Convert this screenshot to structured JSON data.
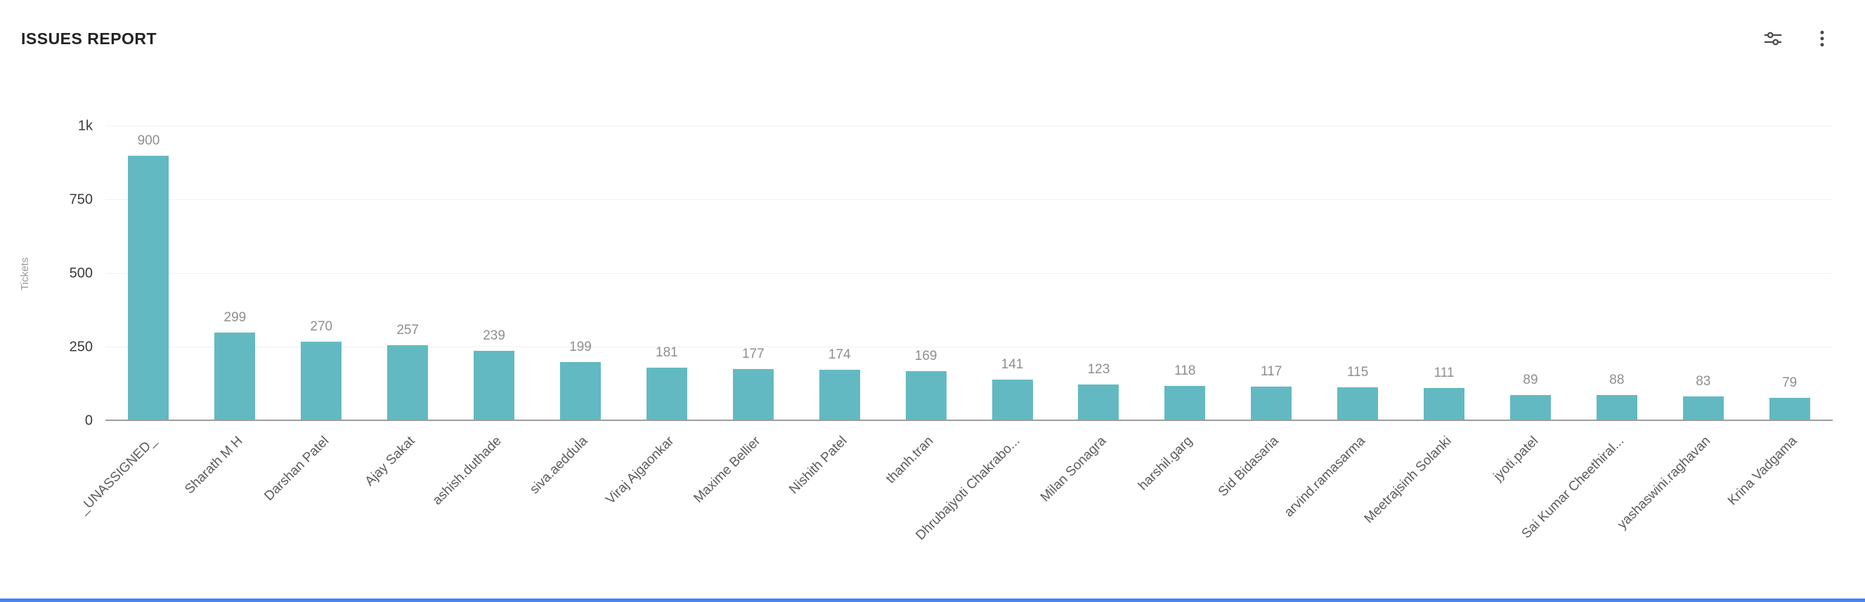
{
  "header": {
    "title": "ISSUES REPORT",
    "icons": [
      {
        "name": "chart-settings-sliders-icon"
      },
      {
        "name": "kebab-menu-icon"
      }
    ]
  },
  "chart_data": {
    "type": "bar",
    "title": "ISSUES REPORT",
    "xlabel": "",
    "ylabel": "Tickets",
    "ylim": [
      0,
      1000
    ],
    "grid": true,
    "legend_position": "none",
    "bar_color": "#63b9c2",
    "yticks": [
      {
        "value": 0,
        "label": "0"
      },
      {
        "value": 250,
        "label": "250"
      },
      {
        "value": 500,
        "label": "500"
      },
      {
        "value": 750,
        "label": "750"
      },
      {
        "value": 1000,
        "label": "1k"
      }
    ],
    "categories": [
      "_UNASSIGNED_",
      "Sharath M H",
      "Darshan Patel",
      "Ajay Sakat",
      "ashish.duthade",
      "siva.aeddula",
      "Viraj Ajgaonkar",
      "Maxime Bellier",
      "Nishith Patel",
      "thanh.tran",
      "Dhrubajyoti Chakrabo...",
      "Milan Sonagra",
      "harshil.garg",
      "Sid Bidasaria",
      "arvind.ramasarma",
      "Meetrajsinh Solanki",
      "jyoti.patel",
      "Sai Kumar Cheethiral...",
      "yashaswini.raghavan",
      "Krina Vadgama"
    ],
    "values": [
      900,
      299,
      270,
      257,
      239,
      199,
      181,
      177,
      174,
      169,
      141,
      123,
      118,
      117,
      115,
      111,
      89,
      88,
      83,
      79
    ]
  },
  "accent": {
    "bottom_bar_color": "#4285f4"
  }
}
